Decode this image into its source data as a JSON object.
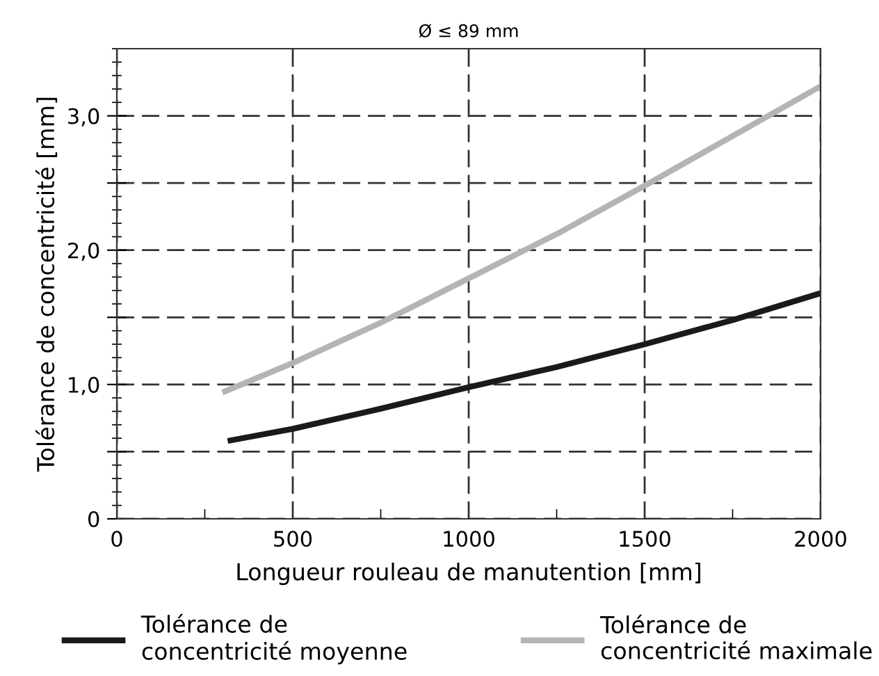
{
  "chart_data": {
    "type": "line",
    "title": "Ø ≤ 89 mm",
    "xlabel": "Longueur rouleau de manutention [mm]",
    "ylabel": "Tolérance de concentricité [mm]",
    "series": [
      {
        "name": "Tolérance de\nconcentricité moyenne",
        "color": "#1a1a1a",
        "x": [
          315,
          500,
          750,
          1000,
          1250,
          1500,
          1750,
          2000
        ],
        "values": [
          0.58,
          0.67,
          0.82,
          0.98,
          1.13,
          1.3,
          1.48,
          1.68
        ]
      },
      {
        "name": "Tolérance de\nconcentricité maximale",
        "color": "#b4b4b4",
        "x": [
          300,
          500,
          750,
          1000,
          1250,
          1500,
          1750,
          2000
        ],
        "values": [
          0.94,
          1.16,
          1.46,
          1.79,
          2.12,
          2.48,
          2.85,
          3.22
        ]
      }
    ],
    "xlim": [
      0,
      2000
    ],
    "ylim": [
      0,
      3.5
    ],
    "xticks": [
      0,
      500,
      1000,
      1500,
      2000
    ],
    "yticks": [
      0,
      {
        "value": 0.5,
        "label": null
      },
      {
        "value": 1.0,
        "label": "1,0"
      },
      {
        "value": 1.5,
        "label": null
      },
      {
        "value": 2.0,
        "label": "2,0"
      },
      {
        "value": 2.5,
        "label": null
      },
      {
        "value": 3.0,
        "label": "3,0"
      }
    ],
    "grid": true,
    "legend": "bottom",
    "marker": "none",
    "line_style": "solid"
  }
}
